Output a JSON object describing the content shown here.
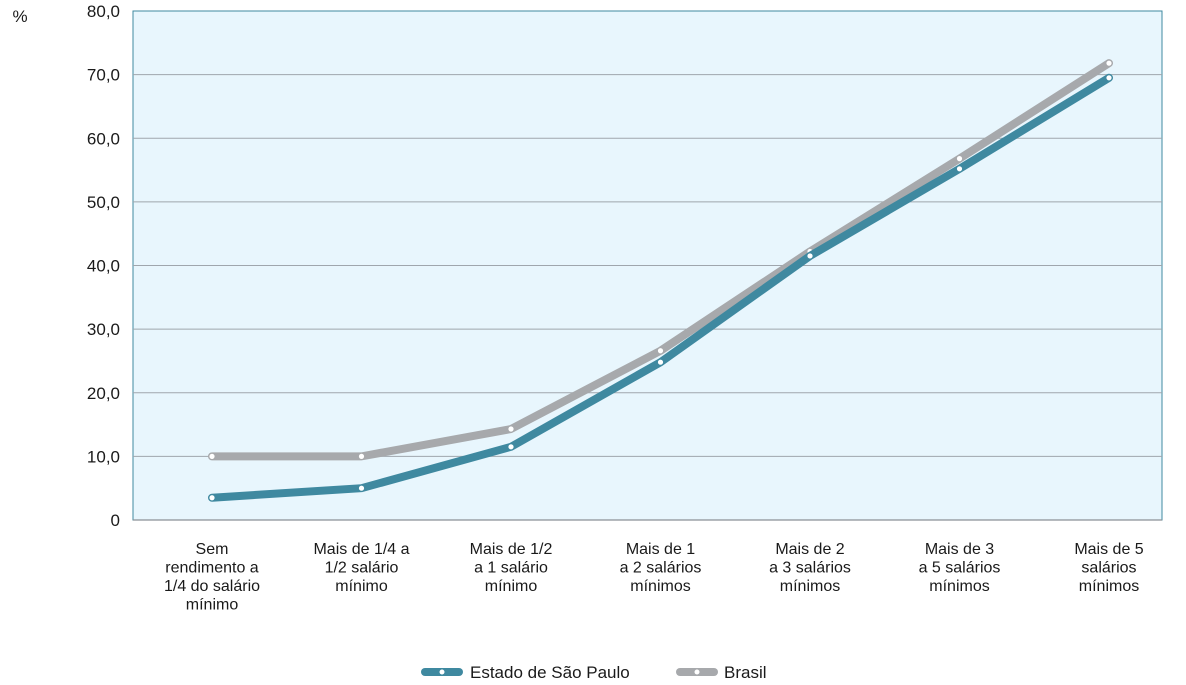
{
  "chart_data": {
    "type": "line",
    "ylabel": "%",
    "ylim": [
      0,
      80
    ],
    "yticks": [
      {
        "value": 0,
        "label": "0"
      },
      {
        "value": 10,
        "label": "10,0"
      },
      {
        "value": 20,
        "label": "20,0"
      },
      {
        "value": 30,
        "label": "30,0"
      },
      {
        "value": 40,
        "label": "40,0"
      },
      {
        "value": 50,
        "label": "50,0"
      },
      {
        "value": 60,
        "label": "60,0"
      },
      {
        "value": 70,
        "label": "70,0"
      },
      {
        "value": 80,
        "label": "80,0"
      }
    ],
    "grid": true,
    "legend": "bottom-center",
    "categories": [
      [
        "Sem",
        "rendimento a",
        "1/4 do salário",
        "mínimo"
      ],
      [
        "Mais de 1/4 a",
        "1/2 salário",
        "mínimo"
      ],
      [
        "Mais de 1/2",
        "a 1 salário",
        "mínimo"
      ],
      [
        "Mais de 1",
        "a 2 salários",
        "mínimos"
      ],
      [
        "Mais de 2",
        "a 3 salários",
        "mínimos"
      ],
      [
        "Mais de 3",
        "a 5 salários",
        "mínimos"
      ],
      [
        "Mais de 5",
        "salários",
        "mínimos"
      ]
    ],
    "series": [
      {
        "name": "Estado de São Paulo",
        "color": "#3f89a0",
        "values": [
          3.5,
          5.0,
          11.5,
          24.8,
          41.5,
          55.2,
          69.5
        ]
      },
      {
        "name": "Brasil",
        "color": "#a7a9ac",
        "values": [
          10.0,
          10.0,
          14.3,
          26.6,
          42.2,
          56.8,
          71.8
        ]
      }
    ],
    "plot_background": "#e8f6fd",
    "grid_color": "#9fa6ad"
  }
}
